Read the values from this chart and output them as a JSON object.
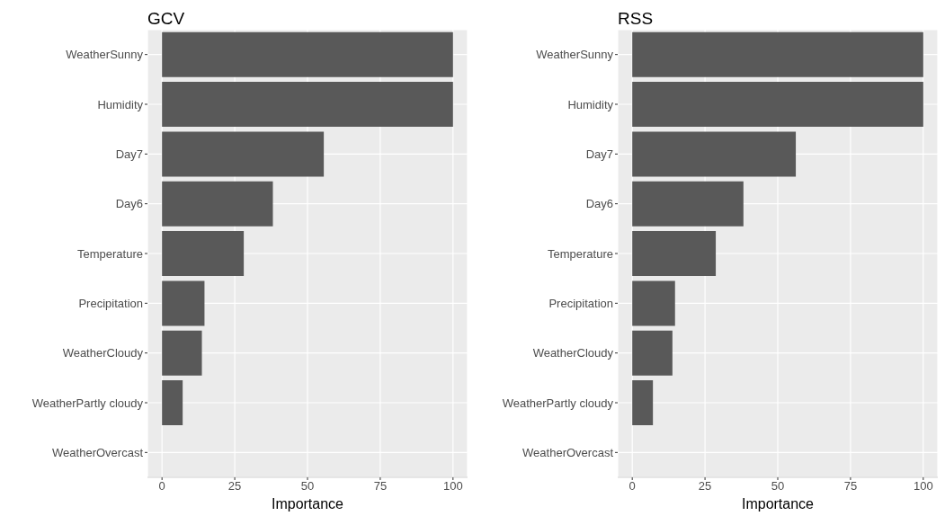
{
  "chart_data": [
    {
      "type": "bar",
      "title": "GCV",
      "xlabel": "Importance",
      "orientation": "horizontal",
      "categories": [
        "WeatherSunny",
        "Humidity",
        "Day7",
        "Day6",
        "Temperature",
        "Precipitation",
        "WeatherCloudy",
        "WeatherPartly cloudy",
        "WeatherOvercast"
      ],
      "values": [
        100,
        100,
        55.6,
        38.1,
        28.1,
        14.6,
        13.7,
        7.1,
        0
      ],
      "color": "#595959",
      "xlim": [
        -5,
        105
      ],
      "xticks": [
        0,
        25,
        50,
        75,
        100
      ],
      "grid": true
    },
    {
      "type": "bar",
      "title": "RSS",
      "xlabel": "Importance",
      "orientation": "horizontal",
      "categories": [
        "WeatherSunny",
        "Humidity",
        "Day7",
        "Day6",
        "Temperature",
        "Precipitation",
        "WeatherCloudy",
        "WeatherPartly cloudy",
        "WeatherOvercast"
      ],
      "values": [
        100,
        100,
        56.2,
        38.2,
        28.7,
        14.7,
        13.8,
        7.1,
        0
      ],
      "color": "#595959",
      "xlim": [
        -5,
        105
      ],
      "xticks": [
        0,
        25,
        50,
        75,
        100
      ],
      "grid": true
    }
  ]
}
